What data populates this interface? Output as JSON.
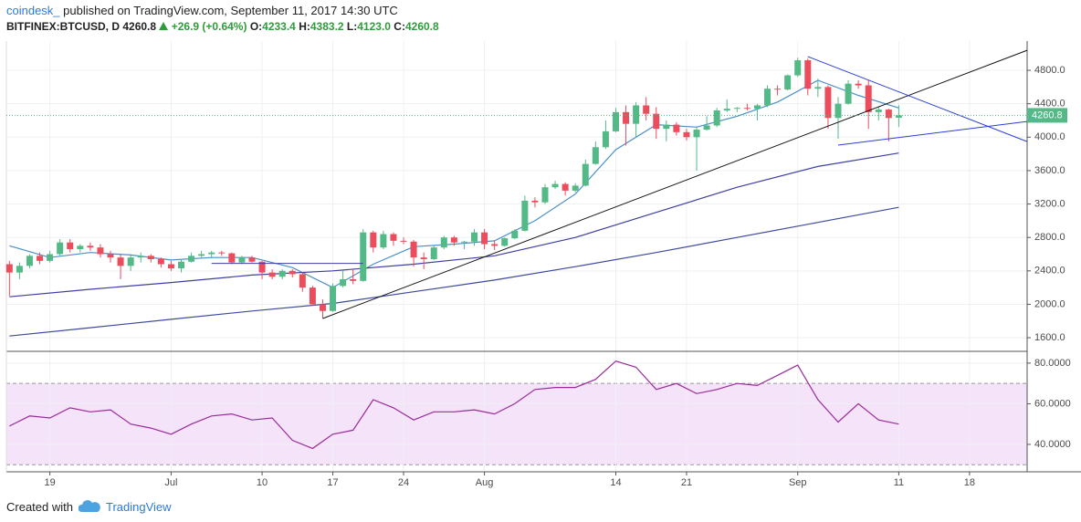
{
  "header": {
    "source": "coindesk_",
    "published": "published on TradingView.com, September 11, 2017 14:30 UTC",
    "symbol": "BITFINEX:BTCUSD, D",
    "last": "4260.8",
    "change": "+26.9 (+0.64%)",
    "ohlc_labels": [
      "O:",
      "H:",
      "L:",
      "C:"
    ],
    "ohlc_values": [
      "4233.4",
      "4383.2",
      "4123.0",
      "4260.8"
    ]
  },
  "footer": {
    "created": "Created with",
    "brand": "TradingView"
  },
  "chart_data": [
    {
      "type": "candlestick",
      "up_color": "#53b987",
      "down_color": "#eb4d5c",
      "xlim": [
        -0.3,
        100.7
      ],
      "xticks": [
        {
          "value": 4,
          "label": "19"
        },
        {
          "value": 16,
          "label": "Jul"
        },
        {
          "value": 25,
          "label": "10"
        },
        {
          "value": 32,
          "label": "17"
        },
        {
          "value": 39,
          "label": "24"
        },
        {
          "value": 47,
          "label": "Aug"
        },
        {
          "value": 60,
          "label": "14"
        },
        {
          "value": 67,
          "label": "21"
        },
        {
          "value": 78,
          "label": "Sep"
        },
        {
          "value": 88,
          "label": "11"
        },
        {
          "value": 95,
          "label": "18"
        }
      ],
      "ylim": [
        1437,
        5150
      ],
      "yticks": [
        {
          "value": 1600,
          "label": "1600.0"
        },
        {
          "value": 2000,
          "label": "2000.0"
        },
        {
          "value": 2400,
          "label": "2400.0"
        },
        {
          "value": 2800,
          "label": "2800.0"
        },
        {
          "value": 3200,
          "label": "3200.0"
        },
        {
          "value": 3600,
          "label": "3600.0"
        },
        {
          "value": 4000,
          "label": "4000.0"
        },
        {
          "value": 4400,
          "label": "4400.0"
        },
        {
          "value": 4800,
          "label": "4800.0"
        }
      ],
      "grid": true,
      "ohlc": [
        [
          2480,
          2520,
          2100,
          2380
        ],
        [
          2380,
          2500,
          2300,
          2460
        ],
        [
          2460,
          2600,
          2430,
          2580
        ],
        [
          2580,
          2620,
          2480,
          2520
        ],
        [
          2520,
          2640,
          2500,
          2600
        ],
        [
          2600,
          2780,
          2580,
          2740
        ],
        [
          2740,
          2780,
          2620,
          2660
        ],
        [
          2660,
          2720,
          2620,
          2700
        ],
        [
          2700,
          2740,
          2640,
          2680
        ],
        [
          2680,
          2720,
          2560,
          2600
        ],
        [
          2600,
          2640,
          2500,
          2560
        ],
        [
          2560,
          2600,
          2300,
          2460
        ],
        [
          2460,
          2600,
          2400,
          2560
        ],
        [
          2560,
          2620,
          2500,
          2580
        ],
        [
          2580,
          2600,
          2500,
          2540
        ],
        [
          2540,
          2560,
          2440,
          2480
        ],
        [
          2480,
          2520,
          2400,
          2430
        ],
        [
          2430,
          2540,
          2380,
          2510
        ],
        [
          2510,
          2620,
          2500,
          2580
        ],
        [
          2580,
          2640,
          2560,
          2600
        ],
        [
          2600,
          2640,
          2560,
          2620
        ],
        [
          2620,
          2640,
          2580,
          2610
        ],
        [
          2610,
          2620,
          2480,
          2500
        ],
        [
          2500,
          2580,
          2480,
          2560
        ],
        [
          2560,
          2580,
          2500,
          2510
        ],
        [
          2510,
          2520,
          2300,
          2380
        ],
        [
          2380,
          2420,
          2300,
          2330
        ],
        [
          2330,
          2420,
          2300,
          2400
        ],
        [
          2400,
          2420,
          2320,
          2360
        ],
        [
          2360,
          2380,
          2150,
          2200
        ],
        [
          2200,
          2220,
          1980,
          2000
        ],
        [
          2000,
          2060,
          1830,
          1920
        ],
        [
          1920,
          2250,
          1910,
          2220
        ],
        [
          2220,
          2400,
          2200,
          2300
        ],
        [
          2300,
          2420,
          2240,
          2280
        ],
        [
          2280,
          2900,
          2270,
          2860
        ],
        [
          2860,
          2880,
          2620,
          2680
        ],
        [
          2680,
          2880,
          2660,
          2840
        ],
        [
          2840,
          2860,
          2700,
          2760
        ],
        [
          2760,
          2800,
          2720,
          2750
        ],
        [
          2750,
          2770,
          2450,
          2560
        ],
        [
          2560,
          2620,
          2420,
          2540
        ],
        [
          2540,
          2700,
          2530,
          2680
        ],
        [
          2680,
          2820,
          2660,
          2800
        ],
        [
          2800,
          2820,
          2700,
          2740
        ],
        [
          2740,
          2760,
          2660,
          2750
        ],
        [
          2750,
          2900,
          2700,
          2860
        ],
        [
          2860,
          2900,
          2660,
          2720
        ],
        [
          2720,
          2760,
          2650,
          2700
        ],
        [
          2700,
          2800,
          2690,
          2790
        ],
        [
          2790,
          2900,
          2780,
          2880
        ],
        [
          2880,
          3300,
          2870,
          3240
        ],
        [
          3240,
          3280,
          3160,
          3220
        ],
        [
          3220,
          3440,
          3200,
          3400
        ],
        [
          3400,
          3480,
          3380,
          3440
        ],
        [
          3440,
          3460,
          3300,
          3360
        ],
        [
          3360,
          3450,
          3340,
          3420
        ],
        [
          3420,
          3730,
          3410,
          3680
        ],
        [
          3680,
          3950,
          3670,
          3880
        ],
        [
          3880,
          4200,
          3860,
          4070
        ],
        [
          4070,
          4350,
          4060,
          4300
        ],
        [
          4300,
          4380,
          3900,
          4160
        ],
        [
          4160,
          4420,
          4000,
          4380
        ],
        [
          4380,
          4480,
          4200,
          4280
        ],
        [
          4280,
          4360,
          3980,
          4100
        ],
        [
          4100,
          4200,
          3950,
          4150
        ],
        [
          4150,
          4180,
          4020,
          4060
        ],
        [
          4060,
          4100,
          3960,
          4000
        ],
        [
          4000,
          4130,
          3600,
          4090
        ],
        [
          4090,
          4250,
          4080,
          4140
        ],
        [
          4140,
          4350,
          4120,
          4320
        ],
        [
          4320,
          4450,
          4300,
          4340
        ],
        [
          4340,
          4360,
          4300,
          4350
        ],
        [
          4350,
          4400,
          4320,
          4340
        ],
        [
          4340,
          4400,
          4200,
          4380
        ],
        [
          4380,
          4620,
          4360,
          4580
        ],
        [
          4580,
          4620,
          4500,
          4570
        ],
        [
          4570,
          4750,
          4560,
          4740
        ],
        [
          4740,
          4950,
          4720,
          4920
        ],
        [
          4920,
          4940,
          4500,
          4580
        ],
        [
          4580,
          4700,
          4480,
          4600
        ],
        [
          4600,
          4620,
          4100,
          4230
        ],
        [
          4230,
          4480,
          3980,
          4400
        ],
        [
          4400,
          4680,
          4390,
          4640
        ],
        [
          4640,
          4680,
          4580,
          4620
        ],
        [
          4620,
          4680,
          4100,
          4300
        ],
        [
          4300,
          4370,
          4200,
          4330
        ],
        [
          4330,
          4340,
          3950,
          4230
        ],
        [
          4233.4,
          4383.2,
          4123.0,
          4260.8
        ]
      ],
      "last_color": "#53b987",
      "series": [
        {
          "color": "#4a8fc9",
          "x": [
            0,
            4,
            8,
            12,
            16,
            20,
            24,
            28,
            32,
            36,
            40,
            44,
            48,
            52,
            56,
            60,
            64,
            68,
            72,
            76,
            80,
            84,
            88
          ],
          "values": [
            2700,
            2560,
            2620,
            2590,
            2530,
            2560,
            2560,
            2440,
            2200,
            2480,
            2690,
            2720,
            2760,
            3000,
            3320,
            3850,
            4150,
            4120,
            4250,
            4420,
            4680,
            4500,
            4350
          ]
        },
        {
          "color": "#3e3fa0",
          "x": [
            0,
            8,
            16,
            24,
            32,
            40,
            48,
            56,
            64,
            72,
            80,
            88
          ],
          "values": [
            2090,
            2180,
            2260,
            2350,
            2400,
            2480,
            2580,
            2800,
            3100,
            3400,
            3650,
            3810
          ]
        },
        {
          "color": "#3e4a9c",
          "x": [
            0,
            8,
            16,
            24,
            32,
            40,
            48,
            56,
            64,
            72,
            80,
            88
          ],
          "values": [
            1620,
            1720,
            1820,
            1920,
            2010,
            2150,
            2290,
            2450,
            2620,
            2800,
            2980,
            3160
          ]
        }
      ],
      "trendlines": [
        {
          "color": "#111111",
          "x": [
            31,
            100.7
          ],
          "values": [
            1830,
            5040
          ]
        },
        {
          "color": "#2b3fd6",
          "x": [
            79,
            100.7
          ],
          "values": [
            4964,
            3948
          ]
        },
        {
          "color": "#2b3fd6",
          "x": [
            82,
            100.7
          ],
          "values": [
            3905,
            4188
          ]
        },
        {
          "color": "#3e3fa0",
          "x": [
            20,
            35
          ],
          "values": [
            2490,
            2490
          ]
        }
      ]
    },
    {
      "type": "line",
      "color": "#9a2b9a",
      "band": [
        30,
        70
      ],
      "band_color": "#f5e3fa",
      "xlim": [
        -0.3,
        100.7
      ],
      "ylim": [
        26.5,
        85.8
      ],
      "yticks": [
        {
          "value": 40,
          "label": "40.0000"
        },
        {
          "value": 60,
          "label": "60.0000"
        },
        {
          "value": 80,
          "label": "80.0000"
        }
      ],
      "x": [
        0,
        2,
        4,
        6,
        8,
        10,
        12,
        14,
        16,
        18,
        20,
        22,
        24,
        26,
        28,
        30,
        32,
        34,
        36,
        38,
        40,
        42,
        44,
        46,
        48,
        50,
        52,
        54,
        56,
        58,
        60,
        62,
        64,
        66,
        68,
        70,
        72,
        74,
        76,
        78,
        80,
        82,
        84,
        86,
        88
      ],
      "values": [
        49,
        54,
        53,
        58,
        56,
        57,
        50,
        48,
        45,
        50,
        54,
        55,
        52,
        53,
        42,
        38,
        45,
        47,
        62,
        58,
        52,
        56,
        56,
        57,
        55,
        60,
        67,
        68,
        68,
        72,
        81,
        78,
        67,
        70,
        65,
        67,
        70,
        69,
        74,
        79,
        62,
        51,
        60,
        52,
        50
      ]
    }
  ]
}
